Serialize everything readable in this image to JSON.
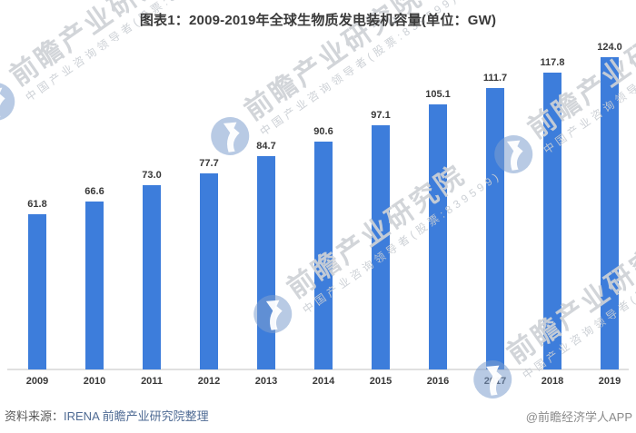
{
  "chart_data": {
    "type": "bar",
    "title": "图表1：2009-2019年全球生物质发电装机容量(单位：GW)",
    "categories": [
      "2009",
      "2010",
      "2011",
      "2012",
      "2013",
      "2014",
      "2015",
      "2016",
      "2017",
      "2018",
      "2019"
    ],
    "values": [
      61.8,
      66.6,
      73.0,
      77.7,
      84.7,
      90.6,
      97.1,
      105.1,
      111.7,
      117.8,
      124.0
    ],
    "unit": "GW",
    "xlabel": "",
    "ylabel": "",
    "ylim": [
      0,
      130
    ],
    "grid": false,
    "legend": false,
    "y_axis_visible": false,
    "data_labels": true,
    "bar_color": "#3d7ddb"
  },
  "footer": {
    "source_label": "资料来源：",
    "source_text": "IRENA 前瞻产业研究院整理",
    "social": "@前瞻经济学人APP"
  },
  "watermark": {
    "brand": "前瞻产业研究院",
    "tagline": "中国产业咨询领导者(股票:839599)"
  },
  "colors": {
    "bar": "#3d7ddb",
    "title_text": "#3a3a3a",
    "axis_line": "#e0e0e0",
    "source_label_text": "#595959",
    "source_link_text": "#4f6b94",
    "social_text": "#8a8a8a",
    "watermark_text": "#ced1d6",
    "watermark_logo": "#7d9ecd"
  }
}
